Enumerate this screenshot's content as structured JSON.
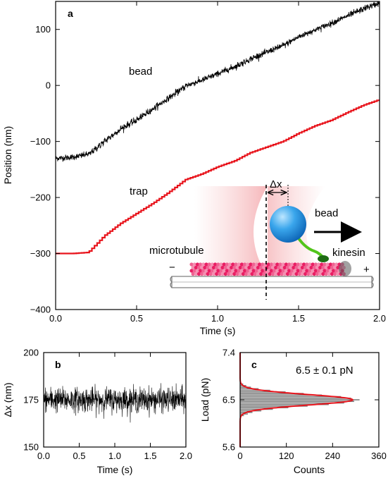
{
  "chart_data": [
    {
      "panel": "a",
      "type": "line",
      "xlabel": "Time (s)",
      "ylabel": "Position (nm)",
      "xlim": [
        0,
        2.0
      ],
      "ylim": [
        -400,
        150
      ],
      "xticks": [
        "0.0",
        "0.5",
        "1.0",
        "1.5",
        "2.0"
      ],
      "xtick_values": [
        0,
        0.5,
        1.0,
        1.5,
        2.0
      ],
      "yticks": [
        "−400",
        "−300",
        "−200",
        "−100",
        "0",
        "100"
      ],
      "ytick_values": [
        -400,
        -300,
        -200,
        -100,
        0,
        100
      ],
      "series": [
        {
          "name": "bead",
          "color": "#000000",
          "x": [
            0,
            0.1,
            0.2,
            0.3,
            0.4,
            0.5,
            0.6,
            0.7,
            0.8,
            0.9,
            1.0,
            1.1,
            1.2,
            1.3,
            1.4,
            1.5,
            1.6,
            1.7,
            1.8,
            1.9,
            2.0
          ],
          "y": [
            -130,
            -128,
            -122,
            -98,
            -76,
            -60,
            -40,
            -20,
            0,
            10,
            22,
            34,
            48,
            60,
            72,
            88,
            100,
            112,
            125,
            138,
            148
          ]
        },
        {
          "name": "trap",
          "color": "#e8141c",
          "x": [
            0,
            0.1,
            0.2,
            0.3,
            0.4,
            0.5,
            0.6,
            0.7,
            0.8,
            0.9,
            1.0,
            1.1,
            1.2,
            1.3,
            1.4,
            1.5,
            1.6,
            1.7,
            1.8,
            1.9,
            2.0
          ],
          "y": [
            -300,
            -300,
            -298,
            -268,
            -246,
            -228,
            -210,
            -190,
            -168,
            -158,
            -145,
            -135,
            -120,
            -110,
            -100,
            -85,
            -72,
            -62,
            -48,
            -35,
            -25
          ]
        }
      ],
      "annotations": {
        "bead_label": "bead",
        "trap_label": "trap",
        "dx_label": "Δx",
        "bead_inset_label": "bead",
        "kinesin_label": "kinesin",
        "microtubule_label": "microtubule",
        "minus_label": "−",
        "plus_label": "+"
      }
    },
    {
      "panel": "b",
      "type": "line",
      "xlabel": "Time (s)",
      "ylabel": "Δx (nm)",
      "xlim": [
        0,
        2.0
      ],
      "ylim": [
        150,
        200
      ],
      "xticks": [
        "0.0",
        "0.5",
        "1.0",
        "1.5",
        "2.0"
      ],
      "xtick_values": [
        0,
        0.5,
        1.0,
        1.5,
        2.0
      ],
      "yticks": [
        "150",
        "175",
        "200"
      ],
      "ytick_values": [
        150,
        175,
        200
      ],
      "series": [
        {
          "color": "#000000",
          "mean": 175,
          "noise_range": [
            164,
            187
          ]
        }
      ]
    },
    {
      "panel": "c",
      "type": "bar",
      "orientation": "horizontal",
      "xlabel": "Counts",
      "ylabel": "Load (pN)",
      "xlim": [
        0,
        360
      ],
      "ylim": [
        5.6,
        7.4
      ],
      "xticks": [
        "0",
        "120",
        "240",
        "360"
      ],
      "xtick_values": [
        0,
        120,
        240,
        360
      ],
      "yticks": [
        "5.6",
        "6.5",
        "7.4"
      ],
      "ytick_values": [
        5.6,
        6.5,
        7.4
      ],
      "annotation": "6.5 ± 0.1 pN",
      "fit": {
        "color": "#e8141c",
        "mean": 6.5,
        "sigma": 0.1,
        "peak": 292
      },
      "bins": {
        "load": [
          6.2,
          6.23,
          6.26,
          6.29,
          6.32,
          6.35,
          6.38,
          6.41,
          6.44,
          6.47,
          6.5,
          6.53,
          6.56,
          6.59,
          6.62,
          6.65,
          6.68,
          6.71,
          6.74,
          6.77,
          6.8
        ],
        "counts": [
          10,
          20,
          32,
          55,
          85,
          125,
          175,
          230,
          270,
          296,
          310,
          288,
          262,
          212,
          165,
          118,
          78,
          48,
          28,
          16,
          8
        ]
      },
      "bar_color": "#808080"
    }
  ],
  "labels": {
    "a": "a",
    "b": "b",
    "c": "c"
  }
}
